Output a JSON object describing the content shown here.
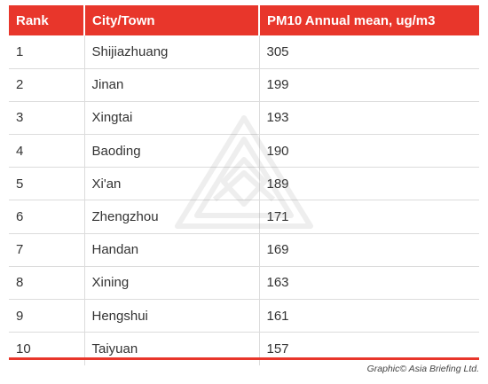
{
  "table": {
    "headers": [
      "Rank",
      "City/Town",
      "PM10 Annual mean, ug/m3"
    ],
    "rows": [
      [
        "1",
        "Shijiazhuang",
        "305"
      ],
      [
        "2",
        "Jinan",
        "199"
      ],
      [
        "3",
        "Xingtai",
        "193"
      ],
      [
        "4",
        "Baoding",
        "190"
      ],
      [
        "5",
        "Xi'an",
        "189"
      ],
      [
        "6",
        "Zhengzhou",
        "171"
      ],
      [
        "7",
        "Handan",
        "169"
      ],
      [
        "8",
        "Xining",
        "163"
      ],
      [
        "9",
        "Hengshui",
        "161"
      ],
      [
        "10",
        "Taiyuan",
        "157"
      ]
    ]
  },
  "credit": "Graphic© Asia Briefing Ltd.",
  "colors": {
    "accent": "#e8362b",
    "text": "#333333",
    "divider": "#dcdcdc"
  },
  "watermark_icon": "asia-briefing-logo-icon"
}
